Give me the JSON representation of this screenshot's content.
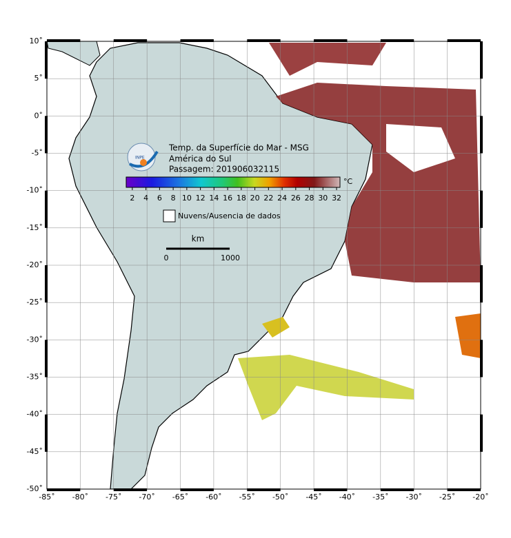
{
  "map": {
    "title_lines": [
      "Temp. da Superfície do Mar - MSG",
      "América do Sul",
      "Passagem: 201906032115"
    ],
    "logo_text": "INPE",
    "colorbar": {
      "ticks": [
        2,
        4,
        6,
        8,
        10,
        12,
        14,
        16,
        18,
        20,
        22,
        24,
        26,
        28,
        30,
        32
      ],
      "range": [
        1.1,
        32.5
      ],
      "unit": "°C"
    },
    "legend": "Nuvens/Ausencia de dados",
    "scale_bar": {
      "unit": "km",
      "start": "0",
      "end": "1000"
    },
    "xlim": [
      -85,
      -20
    ],
    "ylim": [
      -50,
      10
    ],
    "xticks": [
      {
        "value": -85,
        "label": "-85˚"
      },
      {
        "value": -80,
        "label": "-80˚"
      },
      {
        "value": -75,
        "label": "-75˚"
      },
      {
        "value": -70,
        "label": "-70˚"
      },
      {
        "value": -65,
        "label": "-65˚"
      },
      {
        "value": -60,
        "label": "-60˚"
      },
      {
        "value": -55,
        "label": "-55˚"
      },
      {
        "value": -50,
        "label": "-50˚"
      },
      {
        "value": -45,
        "label": "-45˚"
      },
      {
        "value": -40,
        "label": "-40˚"
      },
      {
        "value": -35,
        "label": "-35˚"
      },
      {
        "value": -30,
        "label": "-30˚"
      },
      {
        "value": -25,
        "label": "-25˚"
      },
      {
        "value": -20,
        "label": "-20˚"
      }
    ],
    "yticks": [
      {
        "value": 10,
        "label": "10˚"
      },
      {
        "value": 5,
        "label": "5˚"
      },
      {
        "value": 0,
        "label": "0˚"
      },
      {
        "value": -5,
        "label": "-5˚"
      },
      {
        "value": -10,
        "label": "-10˚"
      },
      {
        "value": -15,
        "label": "-15˚"
      },
      {
        "value": -20,
        "label": "-20˚"
      },
      {
        "value": -25,
        "label": "-25˚"
      },
      {
        "value": -30,
        "label": "-30˚"
      },
      {
        "value": -35,
        "label": "-35˚"
      },
      {
        "value": -40,
        "label": "-40˚"
      },
      {
        "value": -45,
        "label": "-45˚"
      },
      {
        "value": -50,
        "label": "-50˚"
      }
    ]
  }
}
